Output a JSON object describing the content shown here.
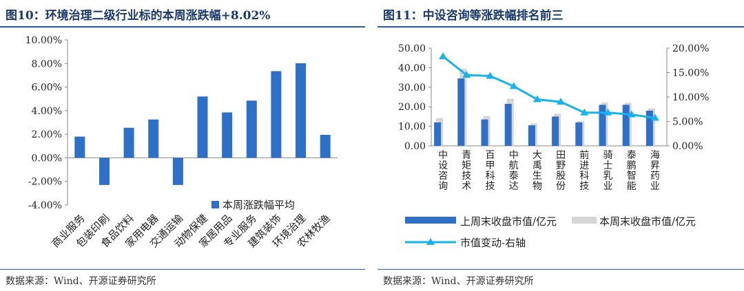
{
  "left": {
    "title": "图10：环境治理二级行业标的本周涨跌幅+8.02%",
    "source": "数据来源：Wind、开源证券研究所"
  },
  "right": {
    "title": "图11：中设咨询等涨跌幅排名前三",
    "source": "数据来源：Wind、开源证券研究所"
  },
  "chart_data": [
    {
      "type": "bar",
      "title": "环境治理二级行业标的本周涨跌幅+8.02%",
      "categories": [
        "商业服务",
        "包装印刷",
        "食品饮料",
        "家用电器",
        "交通运输",
        "动物保健",
        "家居用品",
        "专业服务",
        "建筑装饰",
        "环境治理",
        "农林牧渔"
      ],
      "series": [
        {
          "name": "本周涨跌幅平均",
          "color": "#2e6fc8",
          "values": [
            1.8,
            -2.3,
            2.55,
            3.25,
            -2.3,
            5.2,
            3.85,
            4.85,
            7.35,
            8.02,
            1.95
          ]
        }
      ],
      "ylim": [
        -4,
        10
      ],
      "yticks": [
        "-4.00%",
        "-2.00%",
        "0.00%",
        "2.00%",
        "4.00%",
        "6.00%",
        "8.00%",
        "10.00%"
      ],
      "legend": "bottom-right"
    },
    {
      "type": "bar+line",
      "title": "中设咨询等涨跌幅排名前三",
      "categories": [
        "中设咨询",
        "青矩技术",
        "百甲科技",
        "中航泰达",
        "大禹生物",
        "田野股份",
        "前进科技",
        "骑士乳业",
        "泰鹏智能",
        "海昇药业"
      ],
      "series": [
        {
          "name": "上周末收盘市值/亿元",
          "color": "#2e6fc8",
          "axis": "left",
          "values": [
            12.0,
            34.5,
            13.5,
            21.5,
            10.5,
            15.0,
            12.0,
            21.0,
            21.0,
            18.0
          ]
        },
        {
          "name": "本周末收盘市值/亿元",
          "color": "#d6d6d6",
          "axis": "left",
          "values": [
            14.2,
            39.5,
            15.3,
            24.2,
            11.5,
            16.5,
            12.7,
            22.2,
            22.0,
            19.2
          ]
        },
        {
          "name": "市值变动-右轴",
          "color": "#19b2ea",
          "axis": "right",
          "kind": "line",
          "values": [
            18.3,
            14.5,
            14.3,
            12.2,
            9.5,
            9.0,
            6.8,
            6.8,
            6.4,
            5.7
          ]
        }
      ],
      "ylim": [
        0,
        50
      ],
      "yticks": [
        "0.00",
        "10.00",
        "20.00",
        "30.00",
        "40.00",
        "50.00"
      ],
      "y2lim": [
        0,
        20
      ],
      "y2ticks": [
        "0.00%",
        "5.00%",
        "10.00%",
        "15.00%",
        "20.00%"
      ],
      "legend": "bottom"
    }
  ]
}
